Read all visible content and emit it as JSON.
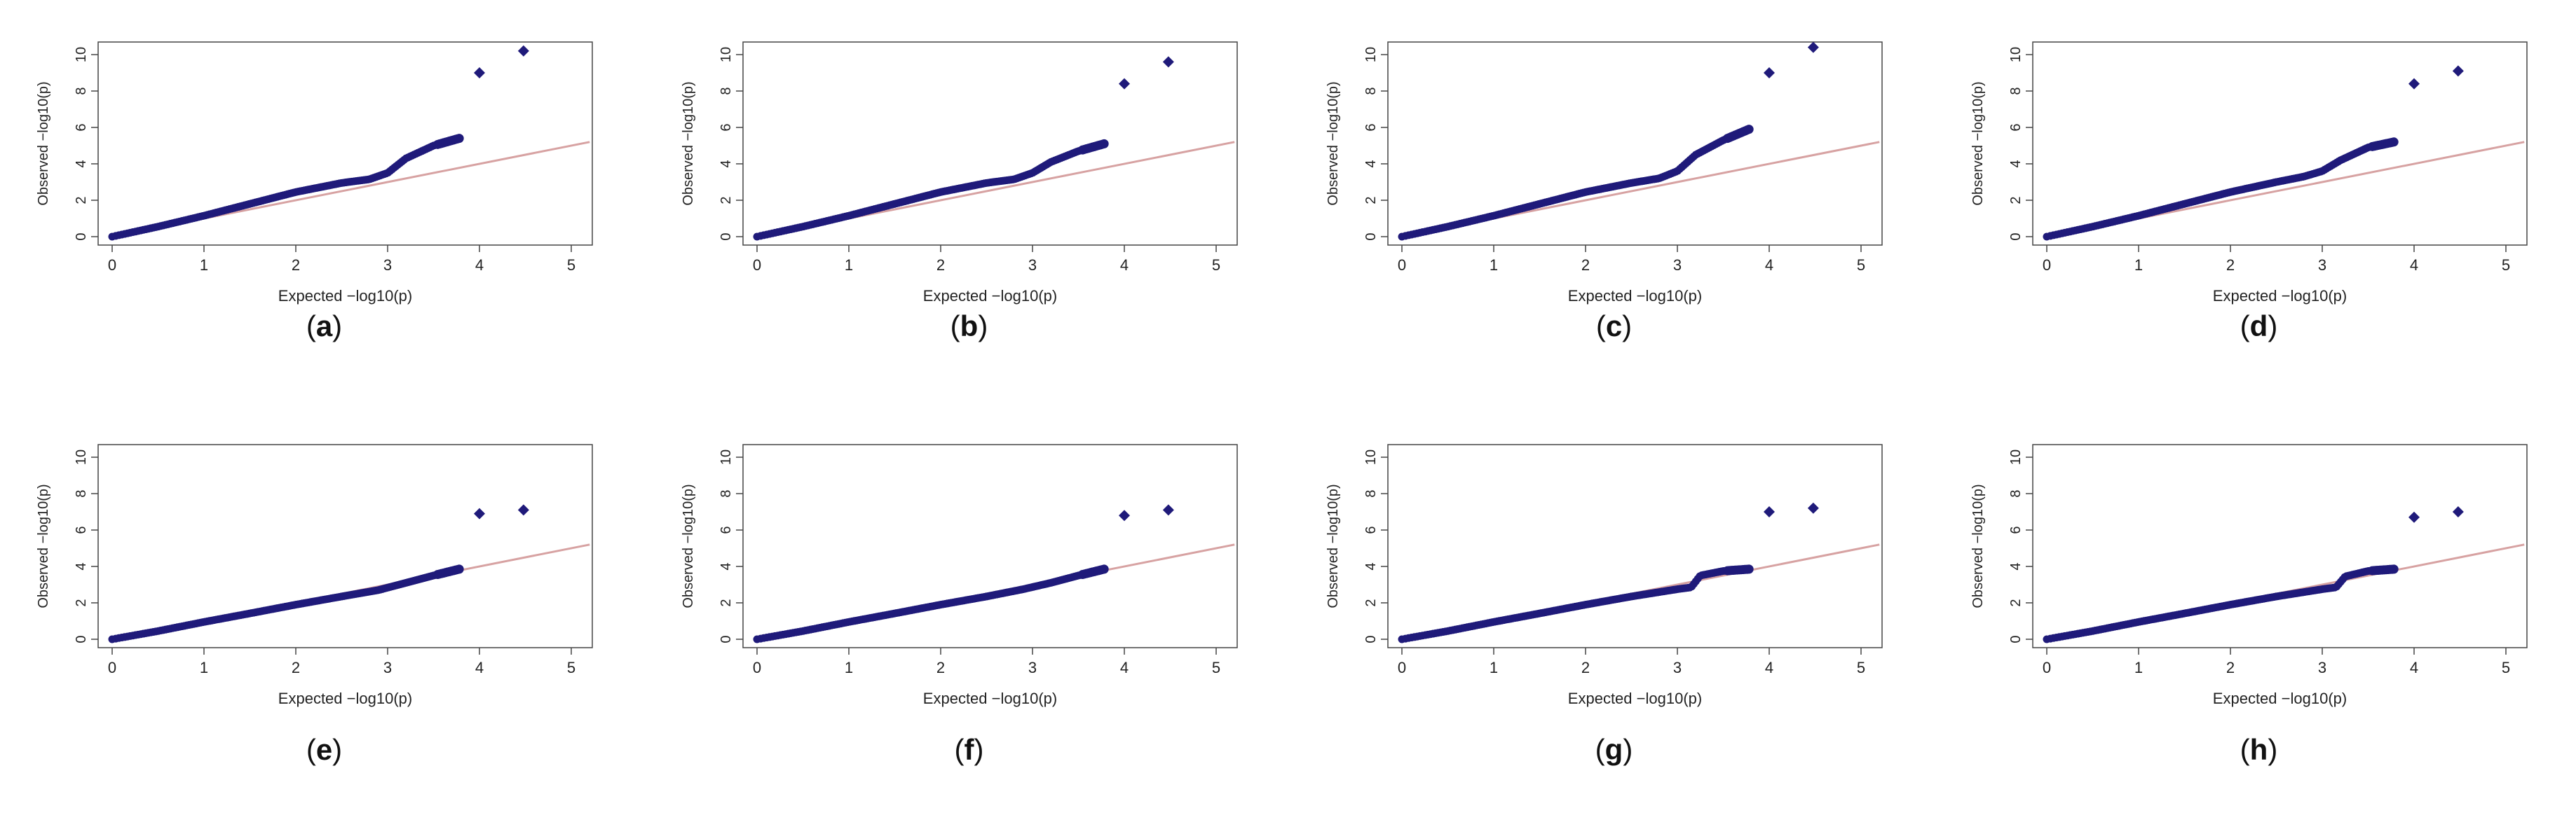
{
  "chart_data": [
    {
      "type": "scatter",
      "panel": "(a)",
      "label_parts": [
        "(",
        "a",
        ")"
      ],
      "xlabel": "Expected −log10(p)",
      "ylabel": "Observed −log10(p)",
      "xlim": [
        0,
        5
      ],
      "ylim": [
        0,
        10
      ],
      "xticks": [
        0,
        1,
        2,
        3,
        4,
        5
      ],
      "yticks": [
        0,
        2,
        4,
        6,
        8,
        10
      ],
      "reference_line": {
        "x": [
          0,
          5.2
        ],
        "y": [
          0,
          5.2
        ],
        "color": "#d7a2a2"
      },
      "trend": [
        [
          0,
          0
        ],
        [
          0.5,
          0.55
        ],
        [
          1,
          1.15
        ],
        [
          1.5,
          1.8
        ],
        [
          2,
          2.45
        ],
        [
          2.5,
          2.95
        ],
        [
          2.8,
          3.15
        ],
        [
          3.0,
          3.5
        ],
        [
          3.2,
          4.3
        ],
        [
          3.5,
          5.0
        ],
        [
          3.78,
          5.4
        ]
      ],
      "outliers": [
        [
          4.0,
          9.0
        ],
        [
          4.48,
          10.2
        ]
      ]
    },
    {
      "type": "scatter",
      "panel": "(b)",
      "label_parts": [
        "(",
        "b",
        ")"
      ],
      "xlabel": "Expected −log10(p)",
      "ylabel": "Observed −log10(p)",
      "xlim": [
        0,
        5
      ],
      "ylim": [
        0,
        10
      ],
      "xticks": [
        0,
        1,
        2,
        3,
        4,
        5
      ],
      "yticks": [
        0,
        2,
        4,
        6,
        8,
        10
      ],
      "reference_line": {
        "x": [
          0,
          5.2
        ],
        "y": [
          0,
          5.2
        ],
        "color": "#d7a2a2"
      },
      "trend": [
        [
          0,
          0
        ],
        [
          0.5,
          0.55
        ],
        [
          1,
          1.15
        ],
        [
          1.5,
          1.8
        ],
        [
          2,
          2.45
        ],
        [
          2.5,
          2.95
        ],
        [
          2.8,
          3.15
        ],
        [
          3.0,
          3.5
        ],
        [
          3.2,
          4.1
        ],
        [
          3.5,
          4.7
        ],
        [
          3.78,
          5.1
        ]
      ],
      "outliers": [
        [
          4.0,
          8.4
        ],
        [
          4.48,
          9.6
        ]
      ]
    },
    {
      "type": "scatter",
      "panel": "(c)",
      "label_parts": [
        "(",
        "c",
        ")"
      ],
      "xlabel": "Expected −log10(p)",
      "ylabel": "Observed −log10(p)",
      "xlim": [
        0,
        5
      ],
      "ylim": [
        0,
        10
      ],
      "xticks": [
        0,
        1,
        2,
        3,
        4,
        5
      ],
      "yticks": [
        0,
        2,
        4,
        6,
        8,
        10
      ],
      "reference_line": {
        "x": [
          0,
          5.2
        ],
        "y": [
          0,
          5.2
        ],
        "color": "#d7a2a2"
      },
      "trend": [
        [
          0,
          0
        ],
        [
          0.5,
          0.55
        ],
        [
          1,
          1.15
        ],
        [
          1.5,
          1.8
        ],
        [
          2,
          2.45
        ],
        [
          2.5,
          2.95
        ],
        [
          2.8,
          3.2
        ],
        [
          3.0,
          3.6
        ],
        [
          3.2,
          4.5
        ],
        [
          3.5,
          5.3
        ],
        [
          3.78,
          5.9
        ]
      ],
      "outliers": [
        [
          4.0,
          9.0
        ],
        [
          4.48,
          10.4
        ]
      ]
    },
    {
      "type": "scatter",
      "panel": "(d)",
      "label_parts": [
        "(",
        "d",
        ")"
      ],
      "xlabel": "Expected −log10(p)",
      "ylabel": "Observed −log10(p)",
      "xlim": [
        0,
        5
      ],
      "ylim": [
        0,
        10
      ],
      "xticks": [
        0,
        1,
        2,
        3,
        4,
        5
      ],
      "yticks": [
        0,
        2,
        4,
        6,
        8,
        10
      ],
      "reference_line": {
        "x": [
          0,
          5.2
        ],
        "y": [
          0,
          5.2
        ],
        "color": "#d7a2a2"
      },
      "trend": [
        [
          0,
          0
        ],
        [
          0.5,
          0.55
        ],
        [
          1,
          1.15
        ],
        [
          1.5,
          1.8
        ],
        [
          2,
          2.45
        ],
        [
          2.5,
          3.0
        ],
        [
          2.8,
          3.3
        ],
        [
          3.0,
          3.6
        ],
        [
          3.2,
          4.2
        ],
        [
          3.5,
          4.9
        ],
        [
          3.78,
          5.2
        ]
      ],
      "outliers": [
        [
          4.0,
          8.4
        ],
        [
          4.48,
          9.1
        ]
      ]
    },
    {
      "type": "scatter",
      "panel": "(e)",
      "label_parts": [
        "(",
        "e",
        ")"
      ],
      "xlabel": "Expected −log10(p)",
      "ylabel": "Observed −log10(p)",
      "xlim": [
        0,
        5
      ],
      "ylim": [
        0,
        10
      ],
      "xticks": [
        0,
        1,
        2,
        3,
        4,
        5
      ],
      "yticks": [
        0,
        2,
        4,
        6,
        8,
        10
      ],
      "reference_line": {
        "x": [
          0,
          5.2
        ],
        "y": [
          0,
          5.2
        ],
        "color": "#d7a2a2"
      },
      "trend": [
        [
          0,
          0
        ],
        [
          0.5,
          0.45
        ],
        [
          1,
          0.95
        ],
        [
          1.5,
          1.42
        ],
        [
          2,
          1.9
        ],
        [
          2.5,
          2.35
        ],
        [
          2.9,
          2.7
        ],
        [
          3.2,
          3.1
        ],
        [
          3.5,
          3.5
        ],
        [
          3.78,
          3.85
        ]
      ],
      "outliers": [
        [
          4.0,
          6.9
        ],
        [
          4.48,
          7.1
        ]
      ]
    },
    {
      "type": "scatter",
      "panel": "(f)",
      "label_parts": [
        "(",
        "f",
        ")"
      ],
      "xlabel": "Expected −log10(p)",
      "ylabel": "Observed −log10(p)",
      "xlim": [
        0,
        5
      ],
      "ylim": [
        0,
        10
      ],
      "xticks": [
        0,
        1,
        2,
        3,
        4,
        5
      ],
      "yticks": [
        0,
        2,
        4,
        6,
        8,
        10
      ],
      "reference_line": {
        "x": [
          0,
          5.2
        ],
        "y": [
          0,
          5.2
        ],
        "color": "#d7a2a2"
      },
      "trend": [
        [
          0,
          0
        ],
        [
          0.5,
          0.45
        ],
        [
          1,
          0.95
        ],
        [
          1.5,
          1.42
        ],
        [
          2,
          1.9
        ],
        [
          2.5,
          2.35
        ],
        [
          2.9,
          2.75
        ],
        [
          3.2,
          3.1
        ],
        [
          3.5,
          3.5
        ],
        [
          3.78,
          3.85
        ]
      ],
      "outliers": [
        [
          4.0,
          6.8
        ],
        [
          4.48,
          7.1
        ]
      ]
    },
    {
      "type": "scatter",
      "panel": "(g)",
      "label_parts": [
        "(",
        "g",
        ")"
      ],
      "xlabel": "Expected −log10(p)",
      "ylabel": "Observed −log10(p)",
      "xlim": [
        0,
        5
      ],
      "ylim": [
        0,
        10
      ],
      "xticks": [
        0,
        1,
        2,
        3,
        4,
        5
      ],
      "yticks": [
        0,
        2,
        4,
        6,
        8,
        10
      ],
      "reference_line": {
        "x": [
          0,
          5.2
        ],
        "y": [
          0,
          5.2
        ],
        "color": "#d7a2a2"
      },
      "trend": [
        [
          0,
          0
        ],
        [
          0.5,
          0.45
        ],
        [
          1,
          0.95
        ],
        [
          1.5,
          1.42
        ],
        [
          2,
          1.9
        ],
        [
          2.5,
          2.35
        ],
        [
          3.0,
          2.75
        ],
        [
          3.15,
          2.85
        ],
        [
          3.25,
          3.5
        ],
        [
          3.5,
          3.75
        ],
        [
          3.78,
          3.85
        ]
      ],
      "outliers": [
        [
          4.0,
          7.0
        ],
        [
          4.48,
          7.2
        ]
      ]
    },
    {
      "type": "scatter",
      "panel": "(h)",
      "label_parts": [
        "(",
        "h",
        ")"
      ],
      "xlabel": "Expected −log10(p)",
      "ylabel": "Observed −log10(p)",
      "xlim": [
        0,
        5
      ],
      "ylim": [
        0,
        10
      ],
      "xticks": [
        0,
        1,
        2,
        3,
        4,
        5
      ],
      "yticks": [
        0,
        2,
        4,
        6,
        8,
        10
      ],
      "reference_line": {
        "x": [
          0,
          5.2
        ],
        "y": [
          0,
          5.2
        ],
        "color": "#d7a2a2"
      },
      "trend": [
        [
          0,
          0
        ],
        [
          0.5,
          0.45
        ],
        [
          1,
          0.95
        ],
        [
          1.5,
          1.42
        ],
        [
          2,
          1.9
        ],
        [
          2.5,
          2.35
        ],
        [
          3.0,
          2.75
        ],
        [
          3.15,
          2.85
        ],
        [
          3.25,
          3.45
        ],
        [
          3.5,
          3.75
        ],
        [
          3.78,
          3.85
        ]
      ],
      "outliers": [
        [
          4.0,
          6.7
        ],
        [
          4.48,
          7.0
        ]
      ]
    }
  ],
  "colors": {
    "points": "#1f1a7a",
    "axis": "#444444",
    "reference": "#d7a2a2",
    "label": "#111111"
  }
}
